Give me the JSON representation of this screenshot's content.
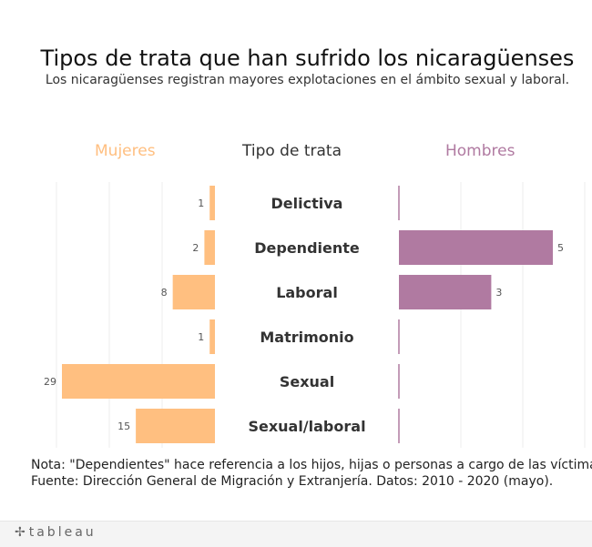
{
  "title": "Tipos de trata que han sufrido los nicaragüenses",
  "subtitle": "Los nicaragüenses registran mayores explotaciones en el ámbito sexual y laboral.",
  "chart_data": {
    "type": "bar",
    "orientation": "horizontal-butterfly",
    "category_header": "Tipo de trata",
    "categories": [
      "Delictiva",
      "Dependiente",
      "Laboral",
      "Matrimonio",
      "Sexual",
      "Sexual/laboral"
    ],
    "series": [
      {
        "name": "Mujeres",
        "values": [
          1,
          2,
          8,
          1,
          29,
          15
        ],
        "color": "#ffbf80"
      },
      {
        "name": "Hombres",
        "values": [
          null,
          5,
          3,
          null,
          null,
          null
        ],
        "color": "#b07aa1"
      }
    ],
    "grid": true
  },
  "notes": [
    "Nota: \"Dependientes\" hace referencia a los hijos, hijas o personas a cargo de las víctimas.",
    "Fuente: Dirección General de Migración y Extranjería. Datos: 2010 - 2020 (mayo)."
  ],
  "footer": {
    "logo_text": "tableau",
    "logo_mark": "✢"
  }
}
